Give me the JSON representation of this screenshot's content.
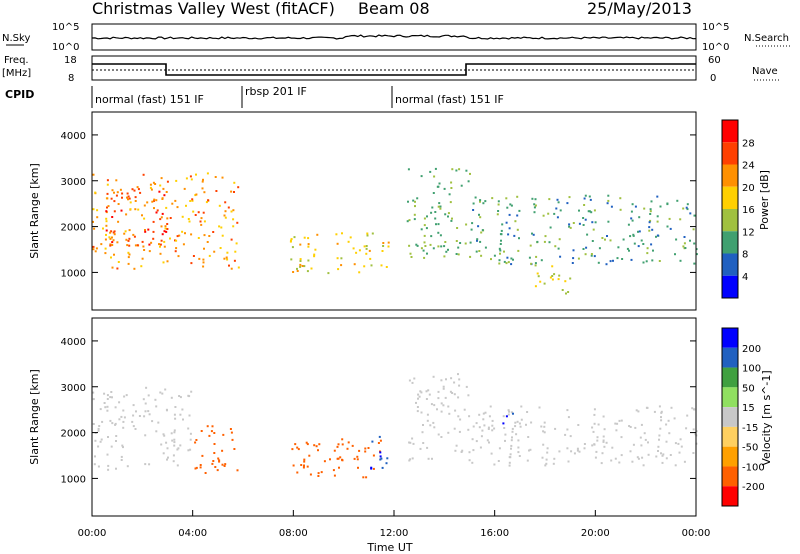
{
  "title_left": "Christmas Valley West (fitACF)",
  "title_center": "Beam 08",
  "title_right": "25/May/2013",
  "panels": {
    "nsky": {
      "label": "N.Sky",
      "y_ticks": [
        "10^5",
        "10^0"
      ],
      "right_ticks": [
        "10^5",
        "10^0"
      ],
      "right_label": "N.Search"
    },
    "freq": {
      "label_line1": "Freq.",
      "label_line2": "[MHz]",
      "y_ticks": [
        "18",
        "8"
      ],
      "right_ticks": [
        "60",
        "0"
      ],
      "right_label": "Nave"
    },
    "cpid": {
      "label": "CPID",
      "segments": [
        "normal (fast) 151 IF",
        "rbsp 201 IF",
        "normal (fast) 151 IF"
      ],
      "boundaries_hours": [
        0,
        6.0,
        12.0,
        24.0
      ]
    }
  },
  "power_panel": {
    "ylabel": "Slant Range [km]",
    "colorbar_label": "Power [dB]",
    "colorbar_ticks": [
      "28",
      "24",
      "20",
      "16",
      "12",
      "8",
      "4"
    ],
    "colors": [
      "#0000ff",
      "#2060c0",
      "#40a070",
      "#a0c040",
      "#ffd000",
      "#ff9000",
      "#ff4000",
      "#ff0000"
    ]
  },
  "velocity_panel": {
    "ylabel": "Slant Range [km]",
    "colorbar_label": "Velocity [m s^-1]",
    "colorbar_ticks": [
      "200",
      "100",
      "50",
      "15",
      "-15",
      "-50",
      "-100",
      "-200"
    ],
    "colors": [
      "#ff0000",
      "#ff6000",
      "#ffa000",
      "#ffd060",
      "#c8c8c8",
      "#90e060",
      "#40a040",
      "#2060c0",
      "#0000ff"
    ]
  },
  "x_axis": {
    "label": "Time UT",
    "ticks": [
      "00:00",
      "04:00",
      "08:00",
      "12:00",
      "16:00",
      "20:00",
      "00:00"
    ]
  },
  "chart_data": {
    "type": "heatmap",
    "title": "Christmas Valley West (fitACF)",
    "x_range_hours": [
      0,
      24
    ],
    "y_range_km": [
      180,
      4500
    ],
    "y_ticks_km": [
      1000,
      2000,
      3000,
      4000
    ],
    "power_blobs": [
      {
        "t0": 0.0,
        "t1": 5.8,
        "r0": 1100,
        "r1": 3200,
        "db": 22
      },
      {
        "t0": 0.5,
        "t1": 3.0,
        "r0": 1600,
        "r1": 2900,
        "db": 26
      },
      {
        "t0": 7.8,
        "t1": 11.8,
        "r0": 1000,
        "r1": 1900,
        "db": 18
      },
      {
        "t0": 12.5,
        "t1": 15.0,
        "r0": 1300,
        "r1": 3300,
        "db": 12
      },
      {
        "t0": 15.0,
        "t1": 24.0,
        "r0": 1200,
        "r1": 2700,
        "db": 10
      },
      {
        "t0": 17.5,
        "t1": 19.0,
        "r0": 500,
        "r1": 1200,
        "db": 16
      }
    ],
    "velocity_blobs": [
      {
        "t0": 0.0,
        "t1": 4.0,
        "r0": 1200,
        "r1": 3000,
        "v": 0
      },
      {
        "t0": 4.0,
        "t1": 5.8,
        "r0": 1100,
        "r1": 2200,
        "v": -180
      },
      {
        "t0": 7.8,
        "t1": 11.5,
        "r0": 1000,
        "r1": 1900,
        "v": -150
      },
      {
        "t0": 11.0,
        "t1": 11.8,
        "r0": 1200,
        "r1": 2000,
        "v": 200
      },
      {
        "t0": 12.5,
        "t1": 15.0,
        "r0": 1400,
        "r1": 3300,
        "v": 0
      },
      {
        "t0": 15.0,
        "t1": 24.0,
        "r0": 1300,
        "r1": 2600,
        "v": 0
      },
      {
        "t0": 16.3,
        "t1": 17.0,
        "r0": 2200,
        "r1": 2500,
        "v": 200
      }
    ]
  }
}
